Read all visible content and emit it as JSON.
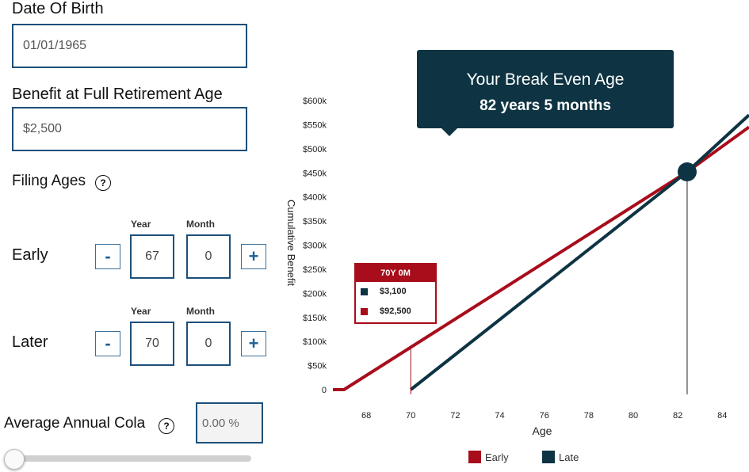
{
  "form": {
    "dob": {
      "label": "Date Of Birth",
      "value": "01/01/1965"
    },
    "benefit": {
      "label": "Benefit at Full Retirement Age",
      "value": "$2,500"
    },
    "filing_ages": {
      "label": "Filing Ages",
      "help": "?"
    },
    "columns": {
      "year": "Year",
      "month": "Month"
    },
    "early": {
      "label": "Early",
      "year": "67",
      "month": "0",
      "minus": "-",
      "plus": "+"
    },
    "later": {
      "label": "Later",
      "year": "70",
      "month": "0",
      "minus": "-",
      "plus": "+"
    },
    "cola": {
      "label": "Average Annual Cola",
      "help": "?",
      "value": "0.00 %"
    },
    "cola_slider": {
      "value": 0
    }
  },
  "tooltip": {
    "title": "Your Break Even Age",
    "value": "82 years 5 months"
  },
  "hover_tooltip": {
    "header": "70Y 0M",
    "rows": [
      {
        "value": "$3,100",
        "color": "#0e3443"
      },
      {
        "value": "$92,500",
        "color": "#a80d1b"
      }
    ]
  },
  "chart_data": {
    "type": "line",
    "xlabel": "Age",
    "ylabel": "Cumulative Benefit",
    "xlim": [
      66.5,
      85.2
    ],
    "ylim": [
      0,
      600000
    ],
    "x_ticks": [
      "68",
      "70",
      "72",
      "74",
      "76",
      "78",
      "80",
      "82",
      "84"
    ],
    "y_ticks": [
      "0",
      "$50k",
      "$100k",
      "$150k",
      "$200k",
      "$250k",
      "$300k",
      "$350k",
      "$400k",
      "$450k",
      "$500k",
      "$550k",
      "$600k"
    ],
    "series": [
      {
        "name": "Early",
        "color": "#a80d1b",
        "x": [
          66.5,
          67,
          82.42,
          85.2
        ],
        "y": [
          0,
          0,
          452000,
          545000
        ]
      },
      {
        "name": "Late",
        "color": "#0e3443",
        "x": [
          70,
          82.42,
          85.2
        ],
        "y": [
          0,
          452000,
          570000
        ]
      }
    ],
    "break_even": {
      "x": 82.42,
      "y": 452000
    },
    "hover_x": 70,
    "legend": [
      "Early",
      "Late"
    ],
    "legend_placement": "bottom"
  }
}
